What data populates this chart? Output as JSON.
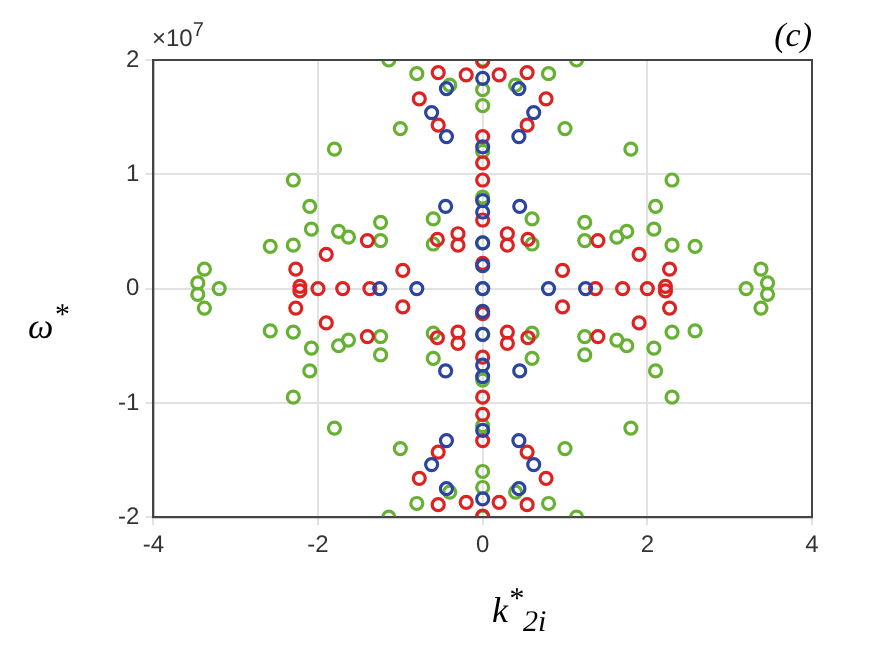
{
  "chart_data": {
    "type": "scatter",
    "xlabel": "k$^{*}$$_{2i}$",
    "ylabel": "ω$^{*}$",
    "annotations": [
      "×10$^{7}$",
      "(c)"
    ],
    "xlim": [
      -4,
      4
    ],
    "xticks": [
      -4,
      -2,
      0,
      2,
      4
    ],
    "ylim": [
      -2,
      2
    ],
    "yticks": [
      -2,
      -1,
      0,
      1,
      2
    ],
    "grid": true,
    "legend": false,
    "marker": "circle",
    "series": [
      {
        "color": "#2a44a0",
        "x": [
          -0.62,
          0.62,
          0,
          0,
          -0.44,
          0.44,
          -0.44,
          0.44,
          -0.62,
          0.62,
          0,
          0,
          -0.44,
          0.44,
          -0.44,
          0.44,
          -0.45,
          0.45,
          0,
          0,
          -0.45,
          0.45,
          0,
          0,
          0,
          0,
          0,
          0,
          0,
          -0.8,
          0.8,
          -1.25,
          1.25
        ],
        "values": [
          1.54,
          1.54,
          1.84,
          1.24,
          1.75,
          1.75,
          1.33,
          1.33,
          -1.54,
          -1.54,
          -1.84,
          -1.24,
          -1.75,
          -1.75,
          -1.33,
          -1.33,
          0.72,
          0.72,
          0.77,
          0.67,
          -0.72,
          -0.72,
          -0.77,
          -0.67,
          -0.4,
          -0.2,
          0,
          0.2,
          0.4,
          0,
          0,
          0,
          0
        ]
      },
      {
        "color": "#dd2222",
        "x": [
          -0.77,
          0.77,
          0,
          0,
          -0.54,
          0.54,
          -0.54,
          0.54,
          -0.77,
          0.77,
          0,
          0,
          -0.54,
          0.54,
          -0.54,
          0.54,
          0,
          0,
          0,
          0,
          -0.2,
          0.2,
          -0.2,
          0.2,
          -1.4,
          -1.9,
          -2.27,
          -2.22,
          1.4,
          1.9,
          2.27,
          2.22,
          -1.4,
          -1.9,
          -2.27,
          -2.22,
          1.4,
          1.9,
          2.27,
          2.22,
          -1.37,
          1.37,
          0,
          0,
          -0.97,
          0.97,
          -0.97,
          0.97,
          -0.55,
          0.55,
          -0.3,
          0.3,
          -0.3,
          0.3,
          -0.55,
          0.55,
          -0.3,
          0.3,
          -0.3,
          0.3,
          -2.0,
          2.0,
          -1.7,
          1.7,
          0,
          0
        ],
        "values": [
          1.66,
          1.66,
          1.99,
          1.33,
          1.89,
          1.89,
          1.43,
          1.43,
          -1.66,
          -1.66,
          -1.99,
          -1.33,
          -1.89,
          -1.89,
          -1.43,
          -1.43,
          1.1,
          -1.1,
          0.95,
          -0.95,
          1.87,
          1.87,
          -1.87,
          -1.87,
          0.42,
          0.3,
          0.17,
          0.02,
          0.42,
          0.3,
          0.17,
          0.02,
          -0.42,
          -0.3,
          -0.17,
          -0.02,
          -0.42,
          -0.3,
          -0.17,
          -0.02,
          0,
          0,
          0.22,
          -0.22,
          0.16,
          0.16,
          -0.16,
          -0.16,
          0.43,
          0.43,
          0.48,
          0.48,
          0.38,
          0.38,
          -0.43,
          -0.43,
          -0.48,
          -0.48,
          -0.38,
          -0.38,
          0,
          0,
          0,
          0,
          0.6,
          -0.6
        ]
      },
      {
        "color": "#66b032",
        "x": [
          0,
          0,
          0,
          0,
          0,
          0,
          0,
          0,
          0,
          0,
          0,
          -1.14,
          -0.8,
          -0.4,
          0,
          0.4,
          0.8,
          1.14,
          -1.14,
          -0.8,
          -0.4,
          0,
          0.4,
          0.8,
          1.14,
          -1,
          1,
          -1.8,
          1.8,
          -2.3,
          2.3,
          -2.1,
          2.1,
          -2.08,
          2.08,
          -2.3,
          2.3,
          -1,
          1,
          -1.8,
          1.8,
          -2.3,
          2.3,
          -2.1,
          2.1,
          -2.08,
          2.08,
          -2.3,
          2.3,
          -1.75,
          1.75,
          -1.24,
          1.24,
          -1.24,
          1.24,
          -0.6,
          0.6,
          -0.6,
          0.6,
          -1.75,
          1.75,
          -1.24,
          1.24,
          -1.24,
          1.24,
          -0.6,
          0.6,
          -0.6,
          0.6,
          -1.63,
          -2.58,
          -3.38,
          -3.46,
          1.63,
          2.58,
          3.38,
          3.46,
          -1.63,
          -2.58,
          -3.38,
          -3.46,
          1.63,
          2.58,
          3.38,
          3.46,
          -3.2,
          3.2
        ],
        "values": [
          -2,
          -1.6,
          -1.2,
          -0.8,
          -0.4,
          0,
          0.4,
          0.8,
          1.2,
          1.6,
          2,
          2,
          1.88,
          1.78,
          1.74,
          1.78,
          1.88,
          2,
          -2,
          -1.88,
          -1.78,
          -1.74,
          -1.78,
          -1.88,
          -2,
          1.4,
          1.4,
          1.22,
          1.22,
          0.95,
          0.95,
          0.72,
          0.72,
          0.52,
          0.52,
          0.38,
          0.38,
          -1.4,
          -1.4,
          -1.22,
          -1.22,
          -0.95,
          -0.95,
          -0.72,
          -0.72,
          -0.52,
          -0.52,
          -0.38,
          -0.38,
          0.5,
          0.5,
          0.58,
          0.58,
          0.42,
          0.42,
          0.61,
          0.61,
          0.39,
          0.39,
          -0.5,
          -0.5,
          -0.58,
          -0.58,
          -0.42,
          -0.42,
          -0.61,
          -0.61,
          -0.39,
          -0.39,
          0.45,
          0.37,
          0.17,
          0.05,
          0.45,
          0.37,
          0.17,
          0.05,
          -0.45,
          -0.37,
          -0.17,
          -0.05,
          -0.45,
          -0.37,
          -0.17,
          -0.05,
          0,
          0
        ]
      }
    ]
  }
}
